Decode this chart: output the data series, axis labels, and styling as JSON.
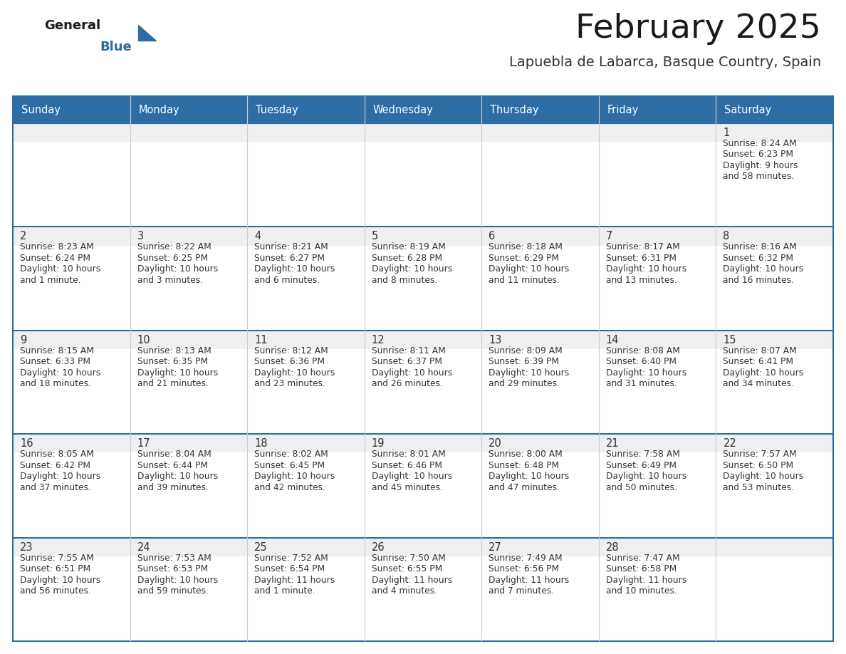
{
  "title": "February 2025",
  "subtitle": "Lapuebla de Labarca, Basque Country, Spain",
  "days_of_week": [
    "Sunday",
    "Monday",
    "Tuesday",
    "Wednesday",
    "Thursday",
    "Friday",
    "Saturday"
  ],
  "header_bg": "#2E6DA4",
  "header_text": "#FFFFFF",
  "cell_bg": "#FFFFFF",
  "cell_top_strip_bg": "#F0F0F0",
  "grid_line_color": "#2E6DA4",
  "day_number_color": "#333333",
  "cell_text_color": "#333333",
  "title_color": "#1a1a1a",
  "subtitle_color": "#333333",
  "logo_general_color": "#1a1a1a",
  "logo_blue_color": "#2E6DA4",
  "calendar_data": [
    {
      "day": 1,
      "col": 6,
      "row": 0,
      "sunrise": "8:24 AM",
      "sunset": "6:23 PM",
      "daylight": "9 hours and 58 minutes."
    },
    {
      "day": 2,
      "col": 0,
      "row": 1,
      "sunrise": "8:23 AM",
      "sunset": "6:24 PM",
      "daylight": "10 hours and 1 minute."
    },
    {
      "day": 3,
      "col": 1,
      "row": 1,
      "sunrise": "8:22 AM",
      "sunset": "6:25 PM",
      "daylight": "10 hours and 3 minutes."
    },
    {
      "day": 4,
      "col": 2,
      "row": 1,
      "sunrise": "8:21 AM",
      "sunset": "6:27 PM",
      "daylight": "10 hours and 6 minutes."
    },
    {
      "day": 5,
      "col": 3,
      "row": 1,
      "sunrise": "8:19 AM",
      "sunset": "6:28 PM",
      "daylight": "10 hours and 8 minutes."
    },
    {
      "day": 6,
      "col": 4,
      "row": 1,
      "sunrise": "8:18 AM",
      "sunset": "6:29 PM",
      "daylight": "10 hours and 11 minutes."
    },
    {
      "day": 7,
      "col": 5,
      "row": 1,
      "sunrise": "8:17 AM",
      "sunset": "6:31 PM",
      "daylight": "10 hours and 13 minutes."
    },
    {
      "day": 8,
      "col": 6,
      "row": 1,
      "sunrise": "8:16 AM",
      "sunset": "6:32 PM",
      "daylight": "10 hours and 16 minutes."
    },
    {
      "day": 9,
      "col": 0,
      "row": 2,
      "sunrise": "8:15 AM",
      "sunset": "6:33 PM",
      "daylight": "10 hours and 18 minutes."
    },
    {
      "day": 10,
      "col": 1,
      "row": 2,
      "sunrise": "8:13 AM",
      "sunset": "6:35 PM",
      "daylight": "10 hours and 21 minutes."
    },
    {
      "day": 11,
      "col": 2,
      "row": 2,
      "sunrise": "8:12 AM",
      "sunset": "6:36 PM",
      "daylight": "10 hours and 23 minutes."
    },
    {
      "day": 12,
      "col": 3,
      "row": 2,
      "sunrise": "8:11 AM",
      "sunset": "6:37 PM",
      "daylight": "10 hours and 26 minutes."
    },
    {
      "day": 13,
      "col": 4,
      "row": 2,
      "sunrise": "8:09 AM",
      "sunset": "6:39 PM",
      "daylight": "10 hours and 29 minutes."
    },
    {
      "day": 14,
      "col": 5,
      "row": 2,
      "sunrise": "8:08 AM",
      "sunset": "6:40 PM",
      "daylight": "10 hours and 31 minutes."
    },
    {
      "day": 15,
      "col": 6,
      "row": 2,
      "sunrise": "8:07 AM",
      "sunset": "6:41 PM",
      "daylight": "10 hours and 34 minutes."
    },
    {
      "day": 16,
      "col": 0,
      "row": 3,
      "sunrise": "8:05 AM",
      "sunset": "6:42 PM",
      "daylight": "10 hours and 37 minutes."
    },
    {
      "day": 17,
      "col": 1,
      "row": 3,
      "sunrise": "8:04 AM",
      "sunset": "6:44 PM",
      "daylight": "10 hours and 39 minutes."
    },
    {
      "day": 18,
      "col": 2,
      "row": 3,
      "sunrise": "8:02 AM",
      "sunset": "6:45 PM",
      "daylight": "10 hours and 42 minutes."
    },
    {
      "day": 19,
      "col": 3,
      "row": 3,
      "sunrise": "8:01 AM",
      "sunset": "6:46 PM",
      "daylight": "10 hours and 45 minutes."
    },
    {
      "day": 20,
      "col": 4,
      "row": 3,
      "sunrise": "8:00 AM",
      "sunset": "6:48 PM",
      "daylight": "10 hours and 47 minutes."
    },
    {
      "day": 21,
      "col": 5,
      "row": 3,
      "sunrise": "7:58 AM",
      "sunset": "6:49 PM",
      "daylight": "10 hours and 50 minutes."
    },
    {
      "day": 22,
      "col": 6,
      "row": 3,
      "sunrise": "7:57 AM",
      "sunset": "6:50 PM",
      "daylight": "10 hours and 53 minutes."
    },
    {
      "day": 23,
      "col": 0,
      "row": 4,
      "sunrise": "7:55 AM",
      "sunset": "6:51 PM",
      "daylight": "10 hours and 56 minutes."
    },
    {
      "day": 24,
      "col": 1,
      "row": 4,
      "sunrise": "7:53 AM",
      "sunset": "6:53 PM",
      "daylight": "10 hours and 59 minutes."
    },
    {
      "day": 25,
      "col": 2,
      "row": 4,
      "sunrise": "7:52 AM",
      "sunset": "6:54 PM",
      "daylight": "11 hours and 1 minute."
    },
    {
      "day": 26,
      "col": 3,
      "row": 4,
      "sunrise": "7:50 AM",
      "sunset": "6:55 PM",
      "daylight": "11 hours and 4 minutes."
    },
    {
      "day": 27,
      "col": 4,
      "row": 4,
      "sunrise": "7:49 AM",
      "sunset": "6:56 PM",
      "daylight": "11 hours and 7 minutes."
    },
    {
      "day": 28,
      "col": 5,
      "row": 4,
      "sunrise": "7:47 AM",
      "sunset": "6:58 PM",
      "daylight": "11 hours and 10 minutes."
    }
  ],
  "num_rows": 5,
  "num_cols": 7,
  "fig_width": 11.88,
  "fig_height": 9.18
}
